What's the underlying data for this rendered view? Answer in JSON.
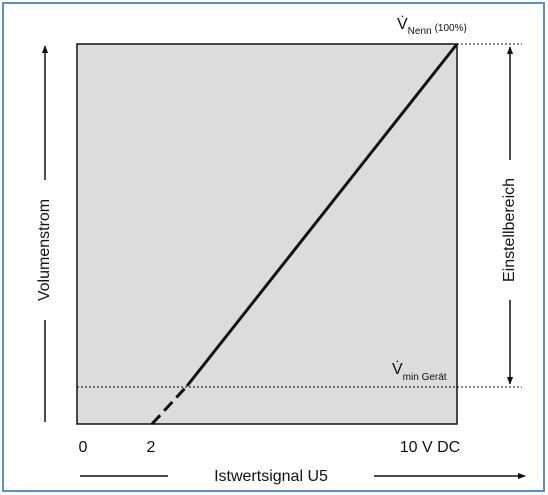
{
  "top_label": {
    "symbol": "V̇",
    "subscript": "Nenn",
    "note": "(100%)"
  },
  "bottom_label": {
    "symbol": "V̇",
    "subscript": "min Gerät"
  },
  "x_labels": [
    "0",
    "2",
    "10 V DC"
  ],
  "x_axis_label": "Istwertsignal U5",
  "y_axis_label": "Volumenstrom",
  "range_label": "Einstellbereich"
}
